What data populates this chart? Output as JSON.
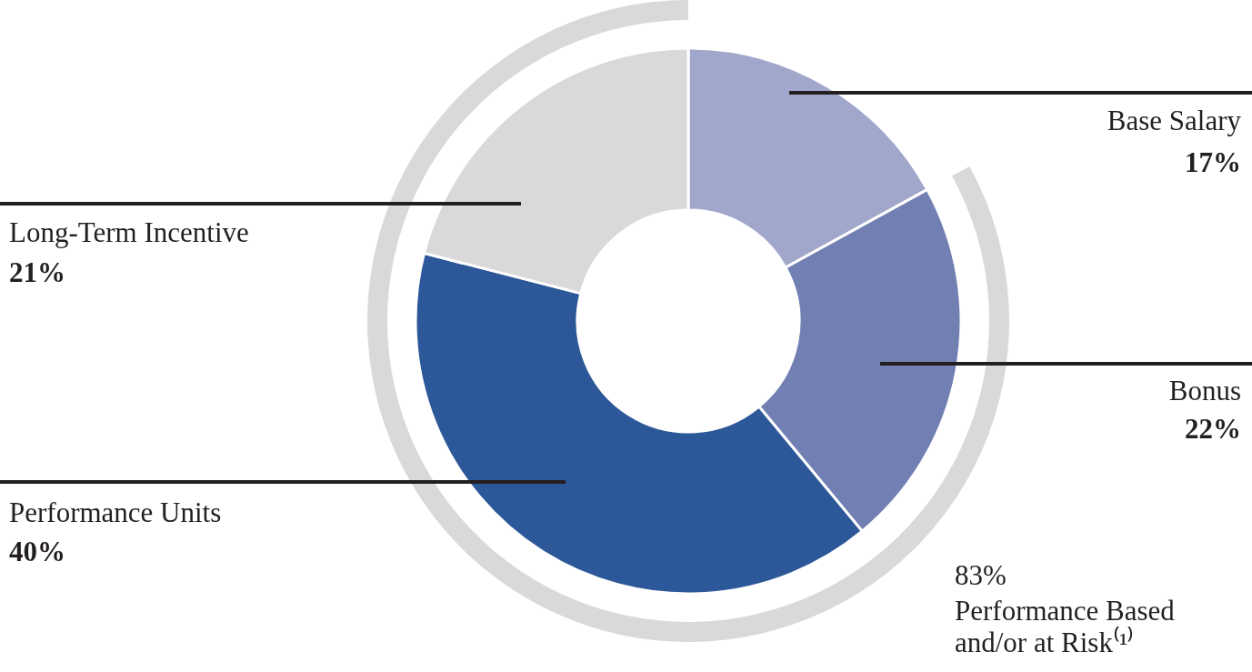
{
  "chart_data": {
    "type": "donut",
    "categories": [
      "Base Salary",
      "Bonus",
      "Performance Units",
      "Long-Term Incentive"
    ],
    "values": [
      17,
      22,
      40,
      21
    ],
    "colors": [
      "#a1a7cb",
      "#717fb3",
      "#2c5798",
      "#d9d9d9"
    ],
    "value_labels": [
      "17%",
      "22%",
      "40%",
      "21%"
    ],
    "annotations": [
      "83%\nPerformance Based\nand/or at Risk⁽¹⁾"
    ]
  }
}
